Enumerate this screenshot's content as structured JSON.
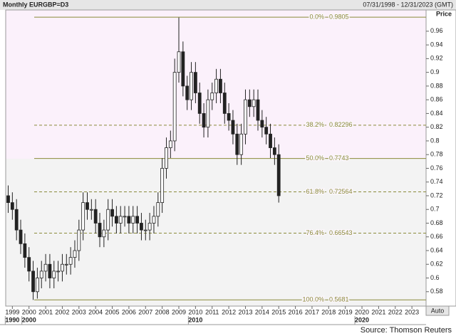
{
  "chart_data": {
    "type": "candlestick",
    "title": "Monthly EURGBP=D3",
    "date_range": "07/31/1998 - 12/31/2023 (GMT)",
    "y_label": "Price",
    "source": "Source: Thomson Reuters",
    "button": "Auto",
    "up_color": "#ffffff",
    "down_color": "#222222",
    "fib_color": "#8a8a3a",
    "x": [
      1998.75,
      1999,
      1999.25,
      1999.5,
      1999.75,
      2000,
      2000.25,
      2000.5,
      2000.75,
      2001,
      2001.25,
      2001.5,
      2001.75,
      2002,
      2002.25,
      2002.5,
      2002.75,
      2003,
      2003.25,
      2003.5,
      2003.75,
      2004,
      2004.25,
      2004.5,
      2004.75,
      2005,
      2005.25,
      2005.5,
      2005.75,
      2006,
      2006.25,
      2006.5,
      2006.75,
      2007,
      2007.25,
      2007.5,
      2007.75,
      2008,
      2008.25,
      2008.5,
      2008.75,
      2009,
      2009.25,
      2009.5,
      2009.75,
      2010,
      2010.25,
      2010.5,
      2010.75,
      2011,
      2011.25,
      2011.5,
      2011.75,
      2012,
      2012.25,
      2012.5,
      2012.75,
      2013,
      2013.25,
      2013.5,
      2013.75,
      2014,
      2014.25,
      2014.5,
      2014.75,
      2015
    ],
    "open": [
      0.72,
      0.71,
      0.7,
      0.67,
      0.65,
      0.63,
      0.61,
      0.58,
      0.6,
      0.61,
      0.62,
      0.6,
      0.61,
      0.61,
      0.62,
      0.62,
      0.63,
      0.64,
      0.67,
      0.71,
      0.7,
      0.7,
      0.68,
      0.66,
      0.67,
      0.7,
      0.69,
      0.68,
      0.69,
      0.69,
      0.68,
      0.69,
      0.68,
      0.67,
      0.67,
      0.68,
      0.69,
      0.71,
      0.76,
      0.79,
      0.8,
      0.9,
      0.93,
      0.88,
      0.86,
      0.9,
      0.87,
      0.84,
      0.82,
      0.86,
      0.87,
      0.89,
      0.87,
      0.84,
      0.83,
      0.81,
      0.78,
      0.81,
      0.86,
      0.85,
      0.86,
      0.83,
      0.82,
      0.81,
      0.79,
      0.78
    ],
    "high": [
      0.735,
      0.725,
      0.715,
      0.685,
      0.665,
      0.645,
      0.625,
      0.615,
      0.625,
      0.635,
      0.635,
      0.625,
      0.625,
      0.635,
      0.635,
      0.645,
      0.655,
      0.685,
      0.725,
      0.725,
      0.715,
      0.715,
      0.695,
      0.685,
      0.715,
      0.715,
      0.705,
      0.705,
      0.705,
      0.705,
      0.705,
      0.705,
      0.695,
      0.685,
      0.695,
      0.705,
      0.725,
      0.775,
      0.805,
      0.815,
      0.92,
      0.98,
      0.945,
      0.895,
      0.915,
      0.915,
      0.885,
      0.855,
      0.875,
      0.885,
      0.905,
      0.905,
      0.885,
      0.855,
      0.845,
      0.825,
      0.825,
      0.875,
      0.875,
      0.875,
      0.875,
      0.845,
      0.835,
      0.825,
      0.805,
      0.795
    ],
    "low": [
      0.695,
      0.685,
      0.655,
      0.635,
      0.615,
      0.595,
      0.568,
      0.57,
      0.585,
      0.595,
      0.585,
      0.585,
      0.595,
      0.595,
      0.605,
      0.605,
      0.615,
      0.625,
      0.655,
      0.685,
      0.685,
      0.665,
      0.645,
      0.645,
      0.655,
      0.675,
      0.665,
      0.665,
      0.675,
      0.665,
      0.665,
      0.665,
      0.655,
      0.655,
      0.655,
      0.665,
      0.675,
      0.695,
      0.745,
      0.775,
      0.785,
      0.885,
      0.865,
      0.845,
      0.845,
      0.855,
      0.825,
      0.805,
      0.805,
      0.845,
      0.855,
      0.855,
      0.825,
      0.815,
      0.795,
      0.765,
      0.765,
      0.795,
      0.835,
      0.835,
      0.815,
      0.805,
      0.795,
      0.775,
      0.765,
      0.71
    ],
    "close": [
      0.71,
      0.7,
      0.67,
      0.65,
      0.63,
      0.61,
      0.58,
      0.6,
      0.61,
      0.62,
      0.6,
      0.61,
      0.61,
      0.62,
      0.62,
      0.63,
      0.64,
      0.67,
      0.71,
      0.7,
      0.7,
      0.68,
      0.66,
      0.67,
      0.7,
      0.69,
      0.68,
      0.69,
      0.69,
      0.68,
      0.69,
      0.68,
      0.67,
      0.67,
      0.68,
      0.69,
      0.71,
      0.76,
      0.79,
      0.8,
      0.9,
      0.93,
      0.88,
      0.86,
      0.9,
      0.87,
      0.84,
      0.82,
      0.86,
      0.87,
      0.89,
      0.87,
      0.84,
      0.83,
      0.81,
      0.78,
      0.81,
      0.86,
      0.85,
      0.86,
      0.83,
      0.82,
      0.81,
      0.79,
      0.78,
      0.72
    ],
    "fib_levels": [
      {
        "label": "0.0%",
        "value": 0.9805,
        "style": "solid"
      },
      {
        "label": "38.2%",
        "value": 0.82296,
        "style": "dashed"
      },
      {
        "label": "50.0%",
        "value": 0.7743,
        "style": "solid"
      },
      {
        "label": "61.8%",
        "value": 0.72564,
        "style": "dashed"
      },
      {
        "label": "76.4%",
        "value": 0.66543,
        "style": "dashed"
      },
      {
        "label": "100.0%",
        "value": 0.5681,
        "style": "solid"
      }
    ],
    "xlim": [
      1998.6,
      2023.85
    ],
    "ylim": [
      0.559,
      0.991
    ],
    "xticks": [
      1999,
      2000,
      2001,
      2002,
      2003,
      2004,
      2005,
      2006,
      2007,
      2008,
      2009,
      2010,
      2011,
      2012,
      2013,
      2014,
      2015,
      2016,
      2017,
      2018,
      2019,
      2020,
      2021,
      2022,
      2023
    ],
    "decade_ticks": [
      {
        "value": 1999,
        "label": "1990"
      },
      {
        "value": 2000,
        "label": "2000"
      },
      {
        "value": 2010,
        "label": "2010"
      },
      {
        "value": 2020,
        "label": "2020"
      }
    ],
    "yticks": [
      0.58,
      0.6,
      0.62,
      0.64,
      0.66,
      0.68,
      0.7,
      0.72,
      0.74,
      0.76,
      0.78,
      0.8,
      0.82,
      0.84,
      0.86,
      0.88,
      0.9,
      0.92,
      0.94,
      0.96
    ]
  }
}
